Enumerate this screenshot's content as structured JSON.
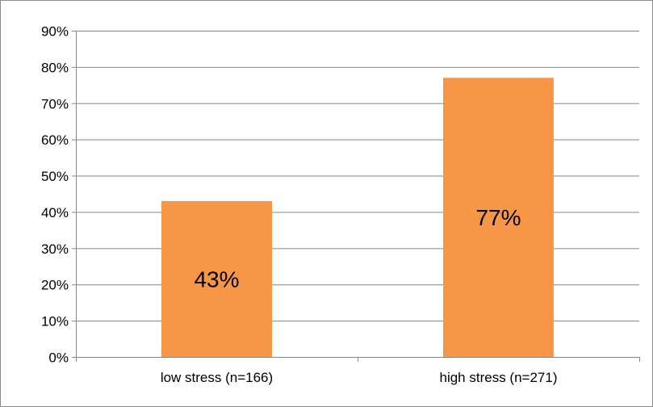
{
  "chart_data": {
    "type": "bar",
    "title": "",
    "xlabel": "",
    "ylabel": "",
    "categories": [
      "low stress (n=166)",
      "high stress (n=271)"
    ],
    "values": [
      43,
      77
    ],
    "data_labels": [
      "43%",
      "77%"
    ],
    "ylim": [
      0,
      90
    ],
    "yticks": [
      0,
      10,
      20,
      30,
      40,
      50,
      60,
      70,
      80,
      90
    ],
    "ytick_labels": [
      "0%",
      "10%",
      "20%",
      "30%",
      "40%",
      "50%",
      "60%",
      "70%",
      "80%",
      "90%"
    ],
    "grid": true,
    "legend": "none",
    "bar_color": "#F79646",
    "grid_color": "#868686",
    "axis_color": "#868686"
  }
}
